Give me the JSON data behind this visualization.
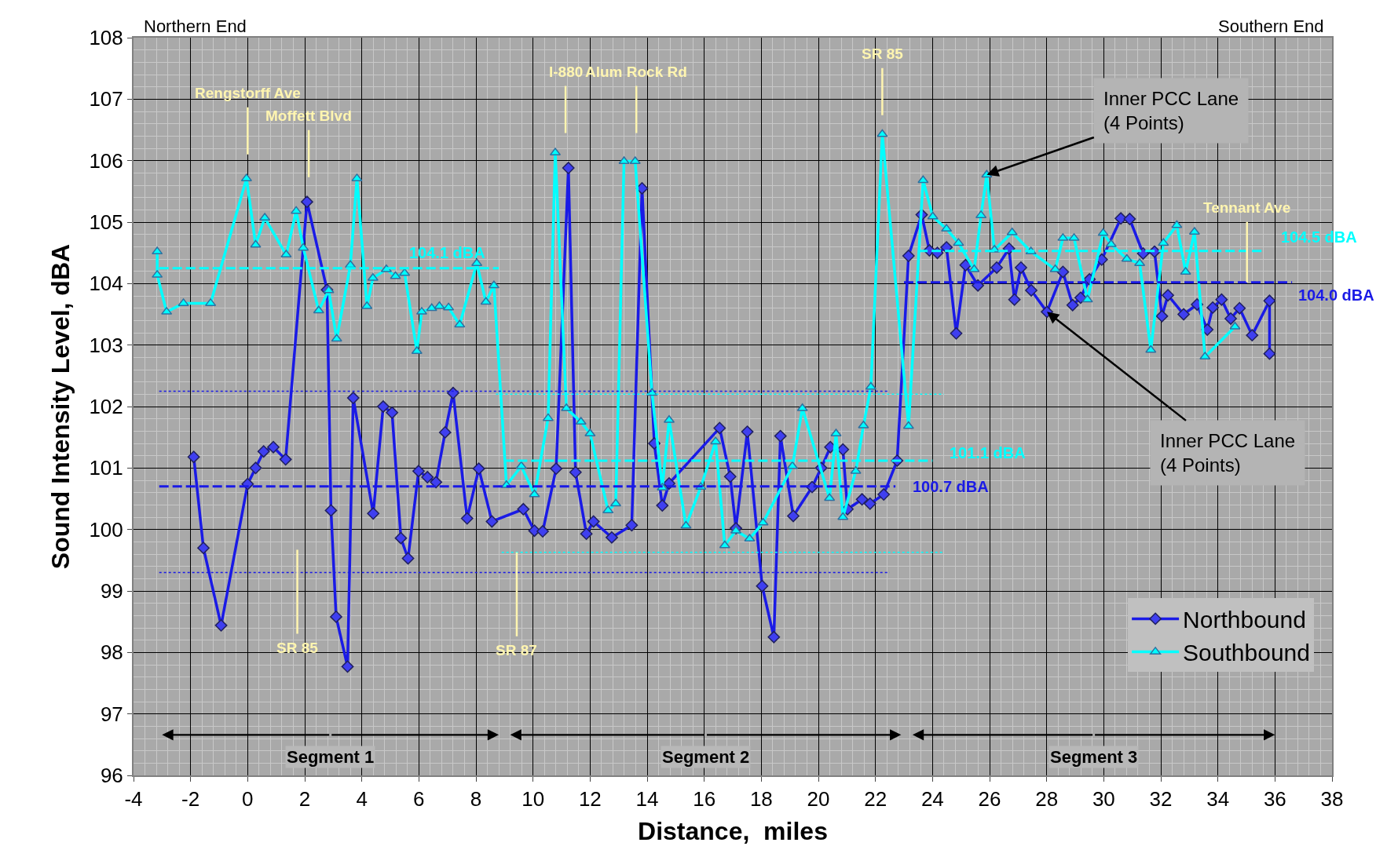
{
  "chart_data": {
    "type": "line",
    "xlabel": "Distance,  miles",
    "ylabel": "Sound Intensity Level, dBA",
    "xlim": [
      -4,
      38
    ],
    "ylim": [
      96,
      108
    ],
    "xticks": [
      -4,
      -2,
      0,
      2,
      4,
      6,
      8,
      10,
      12,
      14,
      16,
      18,
      20,
      22,
      24,
      26,
      28,
      30,
      32,
      34,
      36,
      38
    ],
    "yticks": [
      96,
      97,
      98,
      99,
      100,
      101,
      102,
      103,
      104,
      105,
      106,
      107,
      108
    ],
    "grid": true,
    "legend": "bottom right",
    "series": [
      {
        "name": "Northbound",
        "color": "#1a1ae6",
        "marker": "diamond",
        "line_style": "solid",
        "x": [
          -1.89,
          -1.55,
          -0.93,
          0,
          0.28,
          0.56,
          0.9,
          1.33,
          2.08,
          2.78,
          2.92,
          3.1,
          3.5,
          3.7,
          4.4,
          4.75,
          5.06,
          5.37,
          5.62,
          5.99,
          6.3,
          6.6,
          6.92,
          7.2,
          7.69,
          8.1,
          8.56,
          9.66,
          10.05,
          10.34,
          10.81,
          11.24,
          11.49,
          11.87,
          12.12,
          12.76,
          13.46,
          13.82,
          14.25,
          14.53,
          14.77,
          16.54,
          16.91,
          17.11,
          17.51,
          18.03,
          18.44,
          18.67,
          19.12,
          19.78,
          20.1,
          20.42,
          20.86,
          21.02,
          21.53,
          21.81,
          22.29,
          22.76,
          23.16,
          23.62,
          23.89,
          24.17,
          24.49,
          24.83,
          25.16,
          25.59,
          26.25,
          26.68,
          26.87,
          27.1,
          27.46,
          28.01,
          28.57,
          28.91,
          29.19,
          29.5,
          29.93,
          30.6,
          30.91,
          31.38,
          31.78,
          32.04,
          32.25,
          32.8,
          33.27,
          33.63,
          33.82,
          34.13,
          34.45,
          34.76,
          35.2,
          35.81,
          35.81
        ],
        "values": [
          101.18,
          99.7,
          98.44,
          100.74,
          101.0,
          101.27,
          101.34,
          101.14,
          105.33,
          103.9,
          100.31,
          98.58,
          97.77,
          102.14,
          100.26,
          102.0,
          101.9,
          99.86,
          99.53,
          100.95,
          100.85,
          100.77,
          101.58,
          102.22,
          100.18,
          100.99,
          100.13,
          100.33,
          99.98,
          99.97,
          100.99,
          105.88,
          100.93,
          99.93,
          100.13,
          99.87,
          100.07,
          105.55,
          101.4,
          100.39,
          100.75,
          101.65,
          100.86,
          100.02,
          101.59,
          99.08,
          98.25,
          101.52,
          100.22,
          100.69,
          101.0,
          101.34,
          101.3,
          100.33,
          100.49,
          100.42,
          100.57,
          101.12,
          104.45,
          105.12,
          104.54,
          104.5,
          104.59,
          103.19,
          104.3,
          103.97,
          104.26,
          104.57,
          103.74,
          104.26,
          103.89,
          103.54,
          104.19,
          103.65,
          103.77,
          104.07,
          104.39,
          105.06,
          105.05,
          104.49,
          104.52,
          103.47,
          103.81,
          103.5,
          103.66,
          103.25,
          103.61,
          103.74,
          103.43,
          103.6,
          103.16,
          103.72,
          102.86
        ]
      },
      {
        "name": "Southbound",
        "color": "#00ffff",
        "marker": "triangle",
        "line_style": "solid",
        "x": [
          -3.17,
          -3.17,
          -2.84,
          -2.25,
          -1.3,
          -0.04,
          0.28,
          0.6,
          1.35,
          1.7,
          1.95,
          2.49,
          2.84,
          3.12,
          3.6,
          3.83,
          4.18,
          4.39,
          4.86,
          5.18,
          5.5,
          5.93,
          6.1,
          6.45,
          6.72,
          7.04,
          7.43,
          8.03,
          8.35,
          8.63,
          9.07,
          9.59,
          10.05,
          10.53,
          10.78,
          11.17,
          11.68,
          12.0,
          12.63,
          12.9,
          13.19,
          13.58,
          14.17,
          14.53,
          14.77,
          15.36,
          15.88,
          16.4,
          16.72,
          17.11,
          17.59,
          18.06,
          19.09,
          19.44,
          20.39,
          20.62,
          20.86,
          21.31,
          21.58,
          21.84,
          22.24,
          23.16,
          23.67,
          24.01,
          24.49,
          24.91,
          25.46,
          25.7,
          25.9,
          26.17,
          26.79,
          27.45,
          28.3,
          28.57,
          28.96,
          29.43,
          29.98,
          30.26,
          30.81,
          31.26,
          31.65,
          32.09,
          32.56,
          32.87,
          33.18,
          33.55,
          34.6
        ],
        "values": [
          104.52,
          104.14,
          103.54,
          103.68,
          103.68,
          105.71,
          104.63,
          105.07,
          104.47,
          105.18,
          104.58,
          103.56,
          103.89,
          103.1,
          104.3,
          105.71,
          103.63,
          104.09,
          104.23,
          104.12,
          104.17,
          102.9,
          103.54,
          103.6,
          103.63,
          103.61,
          103.33,
          104.33,
          103.7,
          103.97,
          100.72,
          101.03,
          100.57,
          101.81,
          106.13,
          101.97,
          101.75,
          101.56,
          100.31,
          100.42,
          105.99,
          105.99,
          102.22,
          100.68,
          101.78,
          100.06,
          100.69,
          101.43,
          99.74,
          99.98,
          99.85,
          100.11,
          101.03,
          101.97,
          100.51,
          101.56,
          100.2,
          100.95,
          101.69,
          102.32,
          106.43,
          101.68,
          105.68,
          105.09,
          104.89,
          104.66,
          104.23,
          105.11,
          105.77,
          104.55,
          104.83,
          104.52,
          104.23,
          104.74,
          104.74,
          103.74,
          104.82,
          104.64,
          104.4,
          104.33,
          102.92,
          104.66,
          104.95,
          104.19,
          104.84,
          102.81,
          103.3
        ]
      },
      {
        "type": "line",
        "color": "#00ffff",
        "marker": "none",
        "line_style": "dashed",
        "x": [
          -3.1,
          8.8
        ],
        "values": [
          104.25,
          104.25
        ]
      },
      {
        "type": "line",
        "color": "#1a1ae6",
        "marker": "none",
        "line_style": "dashed",
        "x": [
          -3.1,
          22.7
        ],
        "values": [
          100.7,
          100.7
        ]
      },
      {
        "type": "line",
        "color": "#00ffff",
        "marker": "none",
        "line_style": "dashed",
        "x": [
          9.0,
          24.0
        ],
        "values": [
          101.12,
          101.12
        ]
      },
      {
        "type": "line",
        "color": "#00ffff",
        "marker": "none",
        "line_style": "dashed",
        "x": [
          23.5,
          35.6
        ],
        "values": [
          104.53,
          104.53
        ]
      },
      {
        "type": "line",
        "color": "#1a1ae6",
        "marker": "none",
        "line_style": "dashed",
        "x": [
          23.0,
          36.6
        ],
        "values": [
          104.02,
          104.02
        ]
      },
      {
        "type": "line",
        "color": "#1a1ae6",
        "marker": "none",
        "line_style": "dotted",
        "x": [
          -3.1,
          22.5
        ],
        "values": [
          102.25,
          102.25
        ]
      },
      {
        "type": "line",
        "color": "#1a1ae6",
        "marker": "none",
        "line_style": "dotted",
        "x": [
          -3.1,
          22.5
        ],
        "values": [
          99.3,
          99.3
        ]
      },
      {
        "type": "line",
        "color": "#00ffff",
        "marker": "none",
        "line_style": "dotted",
        "x": [
          8.7,
          24.4
        ],
        "values": [
          102.2,
          102.2
        ]
      },
      {
        "type": "line",
        "color": "#00ffff",
        "marker": "none",
        "line_style": "dotted",
        "x": [
          8.9,
          24.4
        ],
        "values": [
          99.63,
          99.63
        ]
      }
    ],
    "annotations": [
      "Northern End",
      "Southern End",
      "Rengstorff Ave",
      "Moffett Blvd",
      "SR 85",
      {
        "text": "SR 87",
        "x": 9.43,
        "y": 99.63
      },
      "I-880",
      "Alum Rock Rd",
      "SR 85",
      {
        "text": "Tennant Ave",
        "x": 35.02,
        "y": 104.02
      },
      {
        "text": "Inner PCC Lane\n(4 Points)",
        "x": 25.9,
        "y": 105.77
      },
      {
        "text": "Inner PCC Lane\n(4 Points)",
        "x": 28.01,
        "y": 103.54
      },
      {
        "text": "104.1 dBA",
        "x": 7.0,
        "y": 104.25
      },
      {
        "text": "101.1 dBA",
        "x": 24.0,
        "y": 101.12
      },
      {
        "text": "100.7 dBA",
        "x": 22.7,
        "y": 100.7
      },
      {
        "text": "104.5 dBA",
        "x": 35.6,
        "y": 104.53
      },
      {
        "text": "104.0 dBA",
        "x": 36.6,
        "y": 104.02
      },
      "Segment 1",
      "Segment 2",
      "Segment 3"
    ]
  }
}
